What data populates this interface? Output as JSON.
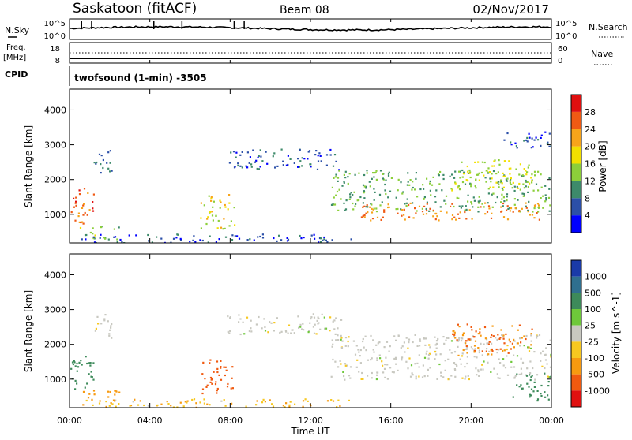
{
  "header": {
    "station": "Saskatoon (fitACF)",
    "beam": "Beam 08",
    "date": "02/Nov/2017"
  },
  "noise_panel": {
    "left_label": "N.Sky",
    "right_label": "N.Search",
    "left_ticks": [
      "10^5",
      "10^0"
    ],
    "right_ticks": [
      "10^5",
      "10^0"
    ]
  },
  "freq_panel": {
    "left_label_line1": "Freq.",
    "left_label_line2": "[MHz]",
    "right_label": "Nave",
    "left_ticks": [
      "18",
      "8"
    ],
    "right_ticks": [
      "60",
      "0"
    ]
  },
  "cpid": {
    "label": "CPID",
    "text": "twofsound (1-min) -3505"
  },
  "axes": {
    "xlabel": "Time UT",
    "ylabel": "Slant Range [km]",
    "x_tick_labels": [
      "00:00",
      "04:00",
      "08:00",
      "12:00",
      "16:00",
      "20:00",
      "00:00"
    ],
    "y_ticks": [
      1000,
      2000,
      3000,
      4000
    ],
    "y_range": [
      180,
      4600
    ]
  },
  "chart_data": [
    {
      "type": "heatmap",
      "panel": "power",
      "x_unit": "hours UT",
      "xlim": [
        0,
        24
      ],
      "ylabel": "Slant Range [km]",
      "ylim": [
        180,
        4600
      ],
      "colorbar_label": "Power [dB]",
      "colorbar_ticks": [
        4,
        8,
        12,
        16,
        20,
        24,
        28
      ],
      "colorbar_range": [
        0,
        32
      ],
      "colorbar_colors": [
        "#0000ff",
        "#2b4fa8",
        "#3d8a6a",
        "#8ccf3a",
        "#f2e000",
        "#f7a41a",
        "#f05a14",
        "#e01010"
      ],
      "regions": [
        {
          "t0": 0.0,
          "t1": 1.2,
          "r0": 700,
          "r1": 1800,
          "value": 26
        },
        {
          "t0": 0.5,
          "t1": 2.5,
          "r0": 300,
          "r1": 700,
          "value": 14
        },
        {
          "t0": 1.2,
          "t1": 2.2,
          "r0": 2200,
          "r1": 2900,
          "value": 8
        },
        {
          "t0": 6.5,
          "t1": 8.2,
          "r0": 600,
          "r1": 1600,
          "value": 18
        },
        {
          "t0": 7.8,
          "t1": 13.5,
          "r0": 2300,
          "r1": 2900,
          "value": 6
        },
        {
          "t0": 13.0,
          "t1": 24.0,
          "r0": 1100,
          "r1": 2300,
          "value": 12
        },
        {
          "t0": 14.5,
          "t1": 23.5,
          "r0": 850,
          "r1": 1350,
          "value": 24
        },
        {
          "t0": 19.0,
          "t1": 23.0,
          "r0": 1700,
          "r1": 2600,
          "value": 16
        },
        {
          "t0": 21.5,
          "t1": 24.0,
          "r0": 2900,
          "r1": 3400,
          "value": 6
        },
        {
          "t0": 0.5,
          "t1": 14.0,
          "r0": 200,
          "r1": 450,
          "value": 6
        }
      ]
    },
    {
      "type": "heatmap",
      "panel": "velocity",
      "x_unit": "hours UT",
      "xlim": [
        0,
        24
      ],
      "ylabel": "Slant Range [km]",
      "ylim": [
        180,
        4600
      ],
      "colorbar_label": "Velocity [m s^-1]",
      "colorbar_ticks": [
        1000,
        500,
        100,
        25,
        -25,
        -100,
        -500,
        -1000
      ],
      "colorbar_colors": [
        "#1a3aa8",
        "#2f6f8f",
        "#3d8a5a",
        "#6ec83a",
        "#c8c8c0",
        "#f7c820",
        "#f79a10",
        "#f05a10",
        "#e01010"
      ],
      "regions": [
        {
          "t0": 0.0,
          "t1": 1.2,
          "r0": 700,
          "r1": 1800,
          "value": 100
        },
        {
          "t0": 0.5,
          "t1": 2.5,
          "r0": 300,
          "r1": 700,
          "value": -100
        },
        {
          "t0": 1.2,
          "t1": 2.2,
          "r0": 2200,
          "r1": 2900,
          "value": 0
        },
        {
          "t0": 6.5,
          "t1": 8.2,
          "r0": 600,
          "r1": 1600,
          "value": -300
        },
        {
          "t0": 7.8,
          "t1": 13.5,
          "r0": 2300,
          "r1": 2900,
          "value": 0
        },
        {
          "t0": 13.0,
          "t1": 24.0,
          "r0": 1000,
          "r1": 2300,
          "value": 0
        },
        {
          "t0": 19.0,
          "t1": 23.0,
          "r0": 1700,
          "r1": 2600,
          "value": -200
        },
        {
          "t0": 22.0,
          "t1": 24.0,
          "r0": 400,
          "r1": 1200,
          "value": 200
        },
        {
          "t0": 0.5,
          "t1": 14.0,
          "r0": 200,
          "r1": 450,
          "value": -50
        }
      ]
    }
  ]
}
